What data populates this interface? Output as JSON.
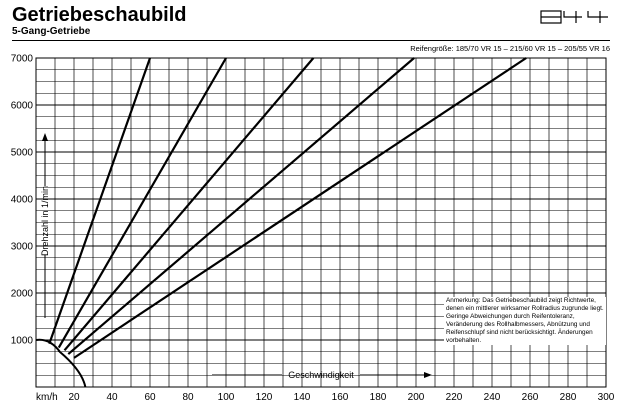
{
  "header": {
    "title": "Getriebeschaubild",
    "subtitle": "5-Gang-Getriebe",
    "logo": "944",
    "tyre_sizes": "Reifengröße: 185/70 VR 15 – 215/60 VR 15 – 205/55 VR 16"
  },
  "note": "Anmerkung: Das Getriebeschaubild zeigt Richtwerte, denen ein mittlerer wirksamer Rollradius zugrunde liegt. Geringe Abweichungen durch Reifentoleranz, Veränderung des Rollhalbmessers, Abnützung und Reifenschlupf sind nicht berücksichtigt. Änderungen vorbehalten.",
  "chart_data": {
    "type": "line",
    "title": "Getriebeschaubild",
    "subtitle": "5-Gang-Getriebe",
    "xlabel": "Geschwindigkeit",
    "ylabel": "Drehzahl in 1/min",
    "x_unit_label": "km/h",
    "xlim": [
      0,
      300
    ],
    "ylim": [
      0,
      7000
    ],
    "x_ticks": [
      "20",
      "40",
      "60",
      "80",
      "100",
      "120",
      "140",
      "160",
      "180",
      "200",
      "220",
      "240",
      "260",
      "280",
      "300"
    ],
    "y_ticks": [
      "1000",
      "2000",
      "3000",
      "4000",
      "5000",
      "6000",
      "7000"
    ],
    "grid": true,
    "idle_rpm": 1000,
    "series": [
      {
        "x": [
          7,
          60
        ],
        "y": [
          920,
          7000
        ]
      },
      {
        "x": [
          12,
          100
        ],
        "y": [
          840,
          7000
        ]
      },
      {
        "x": [
          15,
          146
        ],
        "y": [
          780,
          7000
        ]
      },
      {
        "x": [
          17,
          199
        ],
        "y": [
          700,
          7000
        ]
      },
      {
        "x": [
          20,
          258
        ],
        "y": [
          620,
          7000
        ]
      }
    ]
  }
}
